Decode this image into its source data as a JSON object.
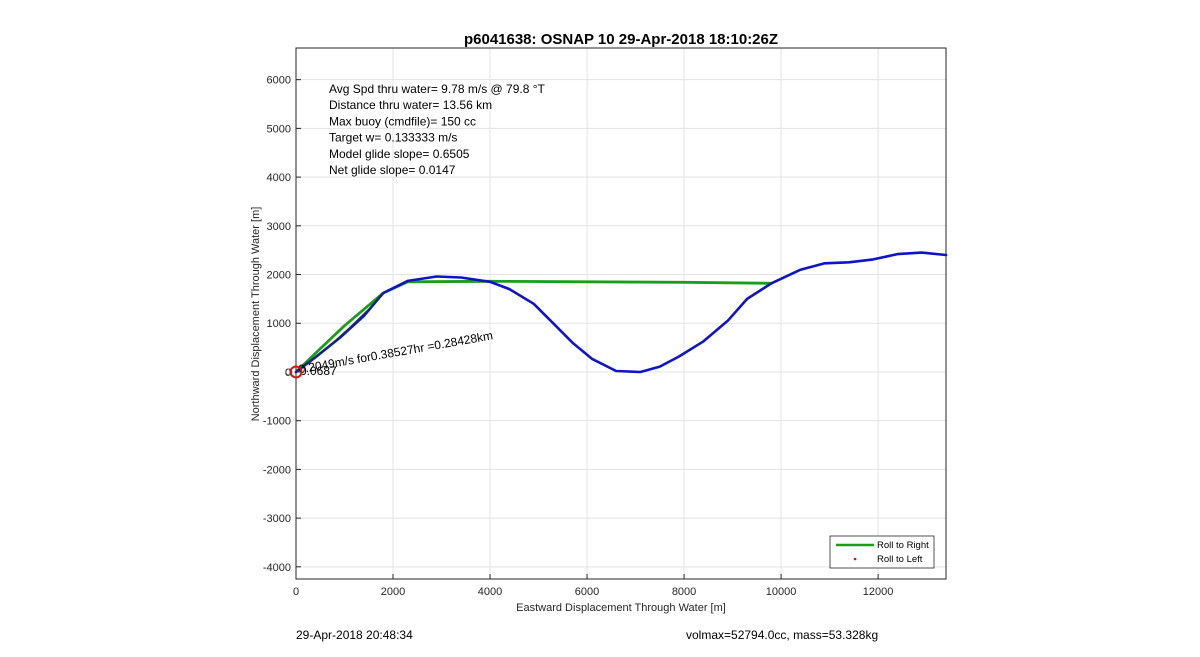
{
  "chart_data": {
    "type": "line",
    "title": "p6041638: OSNAP 10 29-Apr-2018 18:10:26Z",
    "xlabel": "Eastward Displacement Through Water [m]",
    "ylabel": "Northward Displacement Through Water [m]",
    "xlim": [
      0,
      13400
    ],
    "ylim": [
      -4250,
      6650
    ],
    "xticks": [
      0,
      2000,
      4000,
      6000,
      8000,
      10000,
      12000
    ],
    "yticks": [
      -4000,
      -3000,
      -2000,
      -1000,
      0,
      1000,
      2000,
      3000,
      4000,
      5000,
      6000
    ],
    "grid": true,
    "annotations": [
      "Avg Spd thru water=  9.78 m/s @  79.8 °T",
      "Distance thru water= 13.56 km",
      "Max buoy (cmdfile)= 150 cc",
      "Target w= 0.133333 m/s",
      "Model glide slope= 0.6505",
      "Net glide slope= 0.0147"
    ],
    "current_label": "0.2049m/s for0.38527hr =0.28428km",
    "overlap_label": "0.0687",
    "legend": {
      "position": "bottom-right",
      "entries": [
        "Roll to Right",
        "Roll to Left"
      ]
    },
    "colors": {
      "green": "#1a9e1a",
      "blue": "#0f14c8",
      "red": "#e01010"
    },
    "series": [
      {
        "name": "Roll to Right",
        "style": "green-line",
        "x": [
          0,
          500,
          1000,
          1800,
          2300,
          4000,
          6000,
          8000,
          9800
        ],
        "y": [
          0,
          480,
          950,
          1620,
          1850,
          1860,
          1850,
          1840,
          1820
        ]
      },
      {
        "style": "blue-line",
        "x": [
          0,
          400,
          900,
          1400,
          1800,
          2300,
          2900,
          3400,
          4000,
          4400,
          4900,
          5300,
          5700,
          6100,
          6600,
          7100,
          7500,
          7900,
          8400,
          8900,
          9300,
          9800,
          10400,
          10900,
          11400,
          11900,
          12400,
          12900,
          13400
        ],
        "y": [
          0,
          300,
          700,
          1150,
          1620,
          1870,
          1960,
          1940,
          1850,
          1700,
          1400,
          1000,
          600,
          270,
          20,
          0,
          110,
          320,
          630,
          1050,
          1500,
          1820,
          2100,
          2230,
          2250,
          2310,
          2420,
          2450,
          2400
        ]
      },
      {
        "style": "dark-line",
        "x": [
          0,
          600,
          1100,
          1600,
          1800
        ],
        "y": [
          0,
          450,
          900,
          1380,
          1620
        ]
      }
    ],
    "start_marker": {
      "x": 0,
      "y": 0
    }
  },
  "footer": {
    "timestamp": "29-Apr-2018 20:48:34",
    "volume_mass": "volmax=52794.0cc, mass=53.328kg"
  }
}
